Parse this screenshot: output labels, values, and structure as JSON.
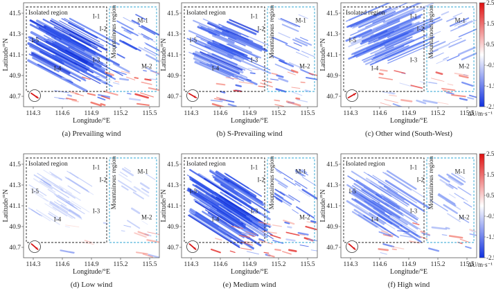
{
  "chart_data": {
    "type": "heatmap",
    "panel_common": {
      "xlabel": "Longitude/°E",
      "ylabel": "Latitude/°N",
      "xticks": [
        "114.3",
        "114.6",
        "114.9",
        "115.2",
        "115.5"
      ],
      "yticks": [
        "41.5",
        "41.3",
        "41.1",
        "40.9",
        "40.7"
      ],
      "xlim": [
        114.2,
        115.6
      ],
      "ylim": [
        40.6,
        41.6
      ],
      "isolated_region_label": "Isolated region",
      "mountainous_region_label": "Mountainous region",
      "subregions": [
        "I-1",
        "I-2",
        "I-3",
        "I-4",
        "I-5",
        "M-1",
        "M-2"
      ]
    },
    "panels": [
      {
        "caption": "(a) Prevailing wind",
        "intensity": 0.95,
        "spread": 1.0,
        "wind_angle_deg": -35
      },
      {
        "caption": "(b) S-Prevailing wind",
        "intensity": 0.9,
        "spread": 0.7,
        "wind_angle_deg": -30
      },
      {
        "caption": "(c) Other wind (South-West)",
        "intensity": 0.7,
        "spread": 0.9,
        "wind_angle_deg": 30
      },
      {
        "caption": "(d) Low wind",
        "intensity": 0.25,
        "spread": 0.5,
        "wind_angle_deg": -40
      },
      {
        "caption": "(e) Medium wind",
        "intensity": 0.95,
        "spread": 1.0,
        "wind_angle_deg": -40
      },
      {
        "caption": "(f) High wind",
        "intensity": 0.6,
        "spread": 0.8,
        "wind_angle_deg": -40
      }
    ],
    "colorbar": {
      "label": "ΔU/m·s⁻¹",
      "ticks": [
        "2.5",
        "1.5",
        "0.5",
        "-0.5",
        "-1.5",
        "-2.5"
      ],
      "range": [
        -2.5,
        2.5
      ],
      "colors": {
        "high": "#e8191c",
        "mid": "#ffffff",
        "low": "#1d3fe0"
      }
    }
  }
}
